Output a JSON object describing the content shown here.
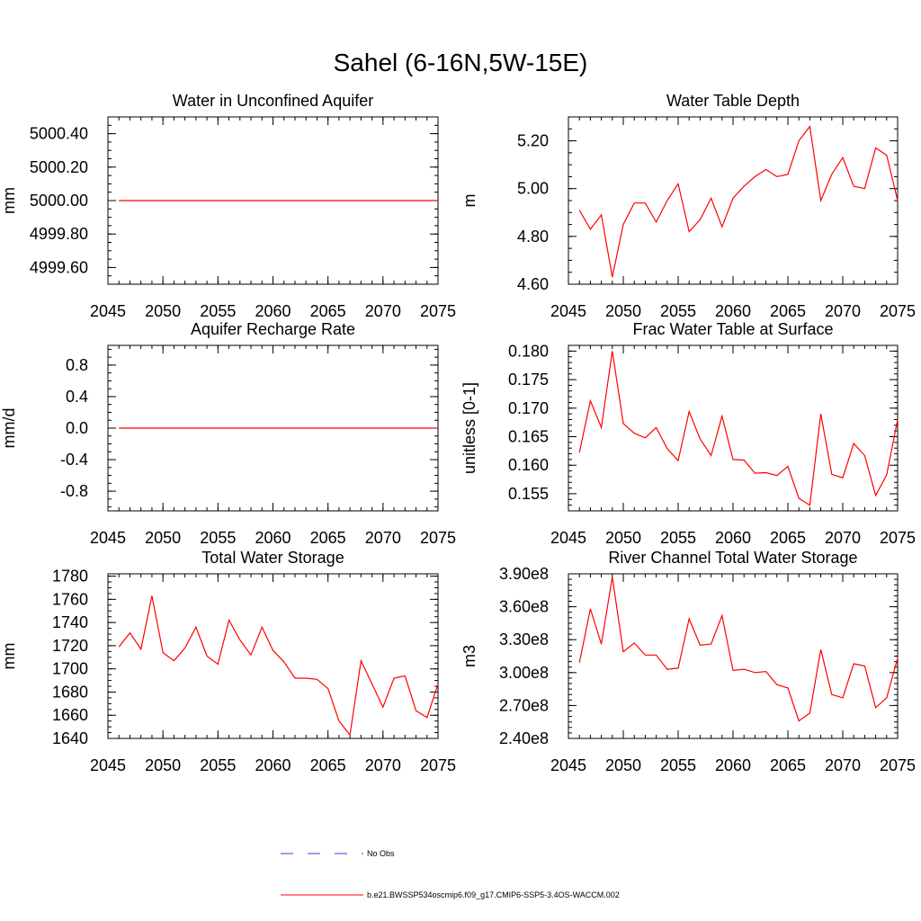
{
  "figure_title": "Sahel (6-16N,5W-15E)",
  "legend": {
    "obs_label": "No Obs",
    "obs_color": "#3b3bd6",
    "model_label": "b.e21.BWSSP534oscmip6.f09_g17.CMIP6-SSP5-3.4OS-WACCM.002",
    "model_color": "#ff0000"
  },
  "chart_data": [
    {
      "type": "line",
      "title": "Water in Unconfined Aquifer",
      "ylabel": "mm",
      "xlim": [
        2045,
        2075
      ],
      "ylim": [
        4999.5,
        5000.5
      ],
      "xticks": [
        2045,
        2050,
        2055,
        2060,
        2065,
        2070,
        2075
      ],
      "yticks": [
        4999.6,
        4999.8,
        5000.0,
        5000.2,
        5000.4
      ],
      "ytick_labels": [
        "4999.60",
        "4999.80",
        "5000.00",
        "5000.20",
        "5000.40"
      ],
      "minor_x": 1,
      "minor_y": 0.05,
      "x": [
        2046,
        2075
      ],
      "y": [
        5000.0,
        5000.0
      ]
    },
    {
      "type": "line",
      "title": "Water Table Depth",
      "ylabel": "m",
      "xlim": [
        2045,
        2075
      ],
      "ylim": [
        4.6,
        5.3
      ],
      "xticks": [
        2045,
        2050,
        2055,
        2060,
        2065,
        2070,
        2075
      ],
      "yticks": [
        4.6,
        4.8,
        5.0,
        5.2
      ],
      "ytick_labels": [
        "4.60",
        "4.80",
        "5.00",
        "5.20"
      ],
      "minor_x": 1,
      "minor_y": 0.05,
      "x": [
        2046,
        2047,
        2048,
        2049,
        2050,
        2051,
        2052,
        2053,
        2054,
        2055,
        2056,
        2057,
        2058,
        2059,
        2060,
        2061,
        2062,
        2063,
        2064,
        2065,
        2066,
        2067,
        2068,
        2069,
        2070,
        2071,
        2072,
        2073,
        2074,
        2075
      ],
      "y": [
        4.91,
        4.83,
        4.89,
        4.63,
        4.85,
        4.94,
        4.94,
        4.86,
        4.95,
        5.02,
        4.82,
        4.87,
        4.96,
        4.84,
        4.96,
        5.01,
        5.05,
        5.08,
        5.05,
        5.06,
        5.2,
        5.26,
        4.95,
        5.06,
        5.13,
        5.01,
        5.0,
        5.17,
        5.14,
        4.95
      ]
    },
    {
      "type": "line",
      "title": "Aquifer Recharge Rate",
      "ylabel": "mm/d",
      "xlim": [
        2045,
        2075
      ],
      "ylim": [
        -1.05,
        1.05
      ],
      "xticks": [
        2045,
        2050,
        2055,
        2060,
        2065,
        2070,
        2075
      ],
      "yticks": [
        -0.8,
        -0.4,
        0.0,
        0.4,
        0.8
      ],
      "ytick_labels": [
        "-0.8",
        "-0.4",
        "0.0",
        "0.4",
        "0.8"
      ],
      "minor_x": 1,
      "minor_y": 0.1,
      "x": [
        2046,
        2075
      ],
      "y": [
        0.0,
        0.0
      ]
    },
    {
      "type": "line",
      "title": "Frac Water Table at Surface",
      "ylabel": "unitless [0-1]",
      "xlim": [
        2045,
        2075
      ],
      "ylim": [
        0.152,
        0.181
      ],
      "xticks": [
        2045,
        2050,
        2055,
        2060,
        2065,
        2070,
        2075
      ],
      "yticks": [
        0.155,
        0.16,
        0.165,
        0.17,
        0.175,
        0.18
      ],
      "ytick_labels": [
        "0.155",
        "0.160",
        "0.165",
        "0.170",
        "0.175",
        "0.180"
      ],
      "minor_x": 1,
      "minor_y": 0.001,
      "x": [
        2046,
        2047,
        2048,
        2049,
        2050,
        2051,
        2052,
        2053,
        2054,
        2055,
        2056,
        2057,
        2058,
        2059,
        2060,
        2061,
        2062,
        2063,
        2064,
        2065,
        2066,
        2067,
        2068,
        2069,
        2070,
        2071,
        2072,
        2073,
        2074,
        2075
      ],
      "y": [
        0.1622,
        0.1713,
        0.1666,
        0.18,
        0.1673,
        0.1656,
        0.1648,
        0.1666,
        0.1629,
        0.1608,
        0.1694,
        0.1646,
        0.1617,
        0.1686,
        0.161,
        0.1609,
        0.1586,
        0.1587,
        0.1582,
        0.1598,
        0.1542,
        0.153,
        0.169,
        0.1584,
        0.1578,
        0.1638,
        0.1617,
        0.1547,
        0.1583,
        0.168
      ]
    },
    {
      "type": "line",
      "title": "Total Water Storage",
      "ylabel": "mm",
      "xlim": [
        2045,
        2075
      ],
      "ylim": [
        1640,
        1782
      ],
      "xticks": [
        2045,
        2050,
        2055,
        2060,
        2065,
        2070,
        2075
      ],
      "yticks": [
        1640,
        1660,
        1680,
        1700,
        1720,
        1740,
        1760,
        1780
      ],
      "ytick_labels": [
        "1640",
        "1660",
        "1680",
        "1700",
        "1720",
        "1740",
        "1760",
        "1780"
      ],
      "minor_x": 1,
      "minor_y": 5,
      "x": [
        2046,
        2047,
        2048,
        2049,
        2050,
        2051,
        2052,
        2053,
        2054,
        2055,
        2056,
        2057,
        2058,
        2059,
        2060,
        2061,
        2062,
        2063,
        2064,
        2065,
        2066,
        2067,
        2068,
        2069,
        2070,
        2071,
        2072,
        2073,
        2074,
        2075
      ],
      "y": [
        1719,
        1731,
        1717,
        1763,
        1714,
        1707,
        1718,
        1736,
        1711,
        1704,
        1742,
        1725,
        1712,
        1736,
        1716,
        1706,
        1692,
        1692,
        1691,
        1683,
        1655,
        1643,
        1707,
        1687,
        1667,
        1692,
        1694,
        1664,
        1658,
        1687
      ]
    },
    {
      "type": "line",
      "title": "River Channel Total Water Storage",
      "ylabel": "m3",
      "xlim": [
        2045,
        2075
      ],
      "ylim": [
        240000000,
        390000000
      ],
      "xticks": [
        2045,
        2050,
        2055,
        2060,
        2065,
        2070,
        2075
      ],
      "yticks": [
        240000000,
        270000000,
        300000000,
        330000000,
        360000000,
        390000000
      ],
      "ytick_labels": [
        "2.40e8",
        "2.70e8",
        "3.00e8",
        "3.30e8",
        "3.60e8",
        "3.90e8"
      ],
      "minor_x": 1,
      "minor_y": 5000000,
      "x": [
        2046,
        2047,
        2048,
        2049,
        2050,
        2051,
        2052,
        2053,
        2054,
        2055,
        2056,
        2057,
        2058,
        2059,
        2060,
        2061,
        2062,
        2063,
        2064,
        2065,
        2066,
        2067,
        2068,
        2069,
        2070,
        2071,
        2072,
        2073,
        2074,
        2075
      ],
      "y": [
        309000000,
        358000000,
        326000000,
        387000000,
        319000000,
        327000000,
        316000000,
        316000000,
        303000000,
        304000000,
        349000000,
        325000000,
        326000000,
        352000000,
        302000000,
        303000000,
        300000000,
        301000000,
        289000000,
        286000000,
        256000000,
        263000000,
        321000000,
        280000000,
        277000000,
        308000000,
        306000000,
        268000000,
        277000000,
        313000000
      ]
    }
  ]
}
